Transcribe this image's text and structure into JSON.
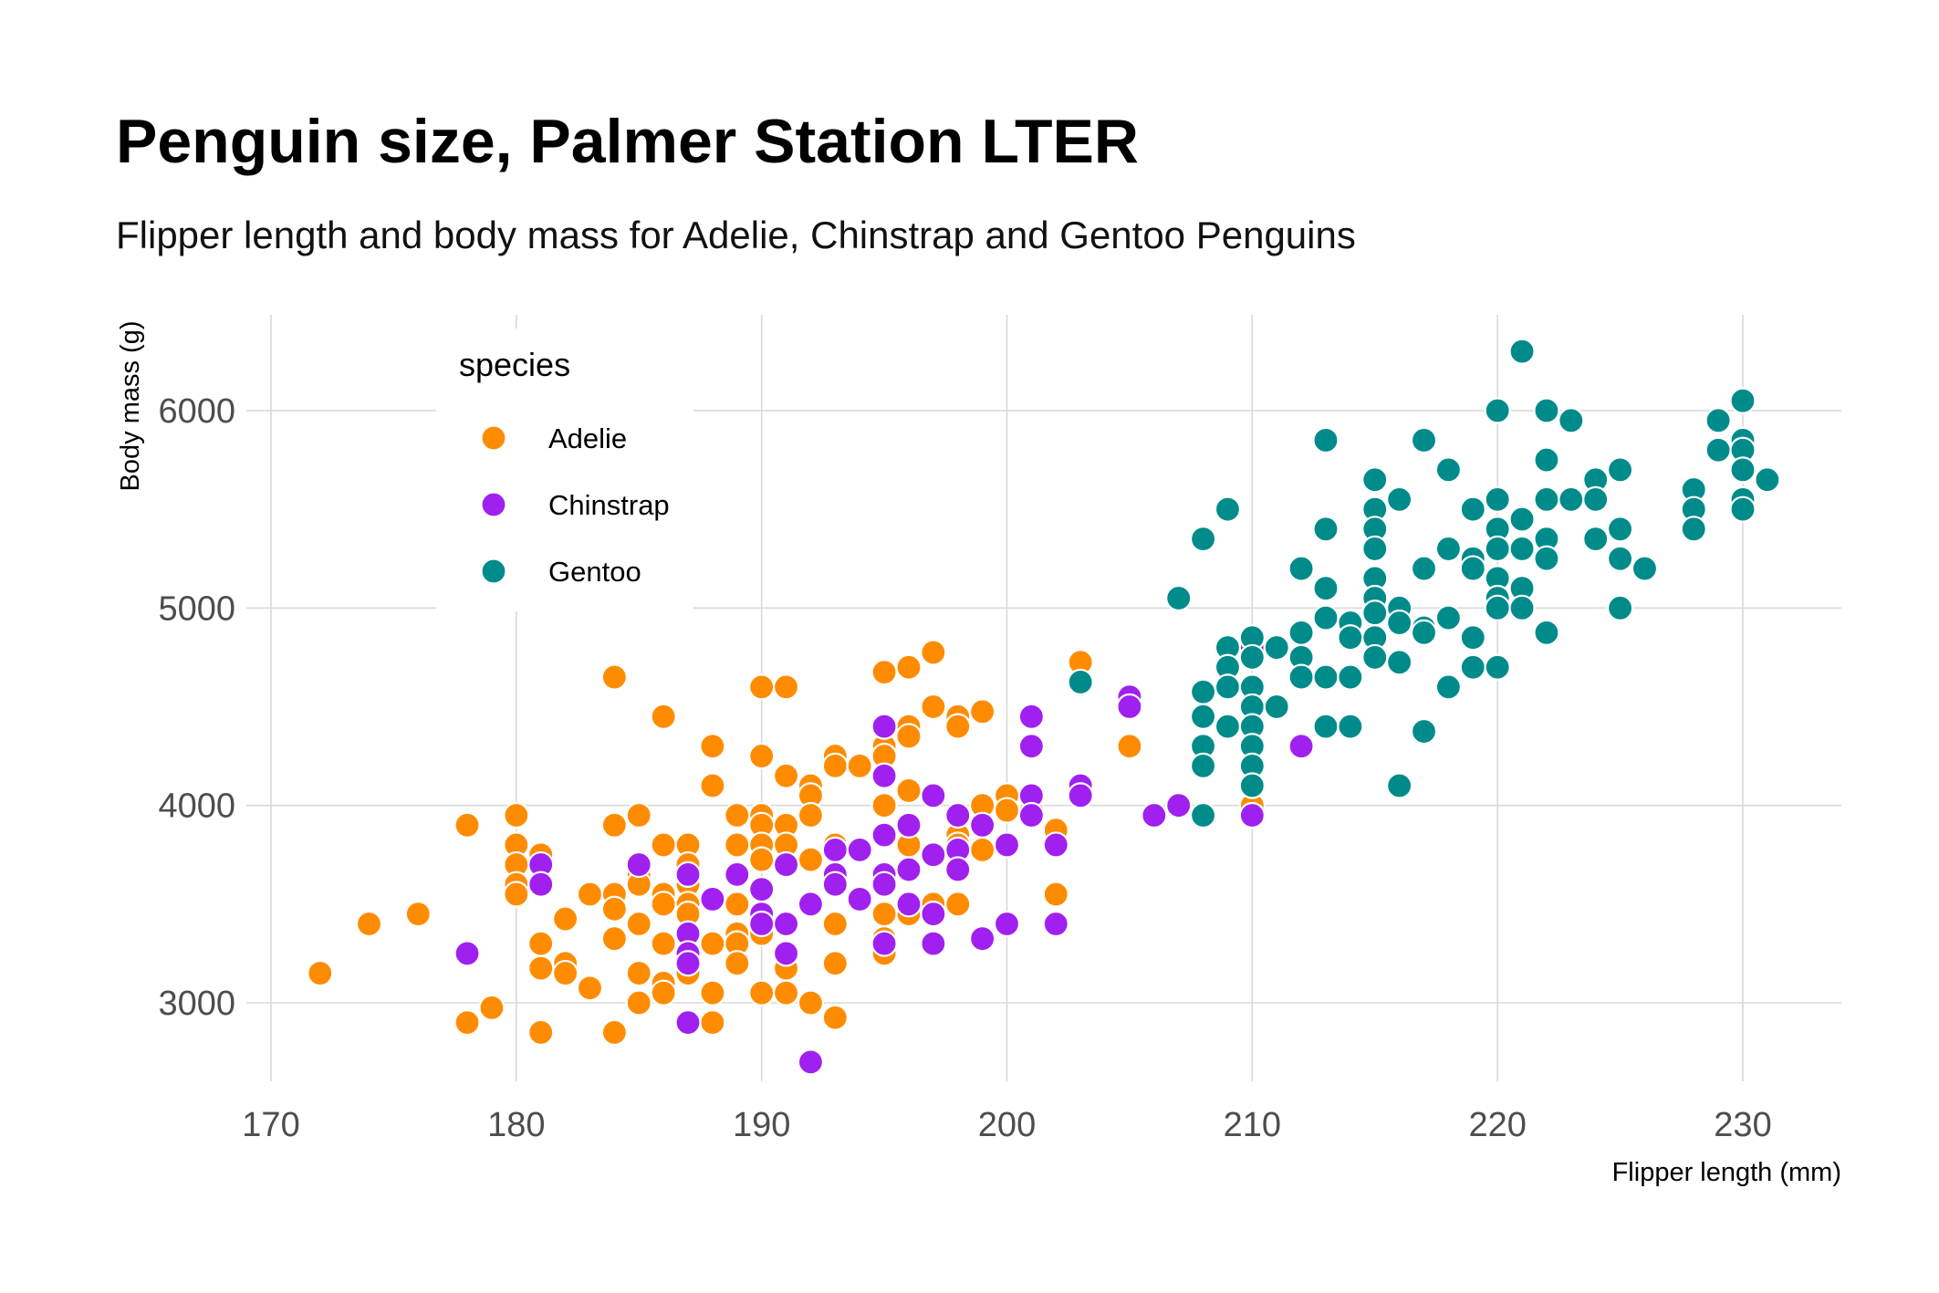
{
  "chart_data": {
    "type": "scatter",
    "title": "Penguin size, Palmer Station LTER",
    "subtitle": "Flipper length and body mass for Adelie, Chinstrap and Gentoo Penguins",
    "xlabel": "Flipper length (mm)",
    "ylabel": "Body mass (g)",
    "xlim": [
      170,
      234
    ],
    "ylim": [
      2600,
      6500
    ],
    "xticks": [
      170,
      180,
      190,
      200,
      210,
      220,
      230
    ],
    "yticks": [
      3000,
      4000,
      5000,
      6000
    ],
    "grid": true,
    "legend": {
      "title": "species",
      "placement": "top-left"
    },
    "series": [
      {
        "name": "Adelie",
        "color": "#FF8C00",
        "points": [
          [
            172,
            3150
          ],
          [
            174,
            3400
          ],
          [
            176,
            3450
          ],
          [
            178,
            3900
          ],
          [
            178,
            2900
          ],
          [
            179,
            2975
          ],
          [
            180,
            3950
          ],
          [
            180,
            3800
          ],
          [
            180,
            3700
          ],
          [
            180,
            3600
          ],
          [
            180,
            3550
          ],
          [
            181,
            3750
          ],
          [
            181,
            3300
          ],
          [
            181,
            3175
          ],
          [
            181,
            2850
          ],
          [
            182,
            3425
          ],
          [
            182,
            3200
          ],
          [
            182,
            3150
          ],
          [
            183,
            3550
          ],
          [
            183,
            3075
          ],
          [
            184,
            4650
          ],
          [
            184,
            3900
          ],
          [
            184,
            3550
          ],
          [
            184,
            3475
          ],
          [
            184,
            3325
          ],
          [
            184,
            2850
          ],
          [
            185,
            3950
          ],
          [
            185,
            3650
          ],
          [
            185,
            3600
          ],
          [
            185,
            3400
          ],
          [
            185,
            3150
          ],
          [
            185,
            3000
          ],
          [
            186,
            4450
          ],
          [
            186,
            3800
          ],
          [
            186,
            3550
          ],
          [
            186,
            3500
          ],
          [
            186,
            3300
          ],
          [
            186,
            3100
          ],
          [
            186,
            3050
          ],
          [
            187,
            3800
          ],
          [
            187,
            3700
          ],
          [
            187,
            3600
          ],
          [
            187,
            3500
          ],
          [
            187,
            3450
          ],
          [
            187,
            3150
          ],
          [
            188,
            4300
          ],
          [
            188,
            4100
          ],
          [
            188,
            3300
          ],
          [
            188,
            3050
          ],
          [
            188,
            2900
          ],
          [
            189,
            3950
          ],
          [
            189,
            3800
          ],
          [
            189,
            3500
          ],
          [
            189,
            3350
          ],
          [
            189,
            3300
          ],
          [
            189,
            3200
          ],
          [
            190,
            4600
          ],
          [
            190,
            4250
          ],
          [
            190,
            3950
          ],
          [
            190,
            3900
          ],
          [
            190,
            3800
          ],
          [
            190,
            3725
          ],
          [
            190,
            3450
          ],
          [
            190,
            3350
          ],
          [
            190,
            3050
          ],
          [
            191,
            4600
          ],
          [
            191,
            4150
          ],
          [
            191,
            3900
          ],
          [
            191,
            3800
          ],
          [
            191,
            3700
          ],
          [
            191,
            3400
          ],
          [
            191,
            3175
          ],
          [
            191,
            3050
          ],
          [
            192,
            4100
          ],
          [
            192,
            4050
          ],
          [
            192,
            3950
          ],
          [
            192,
            3725
          ],
          [
            192,
            3000
          ],
          [
            193,
            4250
          ],
          [
            193,
            4200
          ],
          [
            193,
            3800
          ],
          [
            193,
            3400
          ],
          [
            193,
            3200
          ],
          [
            193,
            2925
          ],
          [
            194,
            4200
          ],
          [
            194,
            3775
          ],
          [
            195,
            4675
          ],
          [
            195,
            4300
          ],
          [
            195,
            4250
          ],
          [
            195,
            4150
          ],
          [
            195,
            4000
          ],
          [
            195,
            3850
          ],
          [
            195,
            3650
          ],
          [
            195,
            3450
          ],
          [
            195,
            3325
          ],
          [
            195,
            3250
          ],
          [
            196,
            4700
          ],
          [
            196,
            4400
          ],
          [
            196,
            4350
          ],
          [
            196,
            4075
          ],
          [
            196,
            3800
          ],
          [
            196,
            3500
          ],
          [
            196,
            3450
          ],
          [
            197,
            4775
          ],
          [
            197,
            4500
          ],
          [
            197,
            3750
          ],
          [
            197,
            3500
          ],
          [
            198,
            4450
          ],
          [
            198,
            4400
          ],
          [
            198,
            3850
          ],
          [
            198,
            3800
          ],
          [
            198,
            3500
          ],
          [
            199,
            4475
          ],
          [
            199,
            4000
          ],
          [
            199,
            3775
          ],
          [
            200,
            4050
          ],
          [
            200,
            3975
          ],
          [
            201,
            3975
          ],
          [
            202,
            3875
          ],
          [
            202,
            3550
          ],
          [
            203,
            4725
          ],
          [
            205,
            4300
          ],
          [
            210,
            4000
          ]
        ]
      },
      {
        "name": "Chinstrap",
        "color": "#A020F0",
        "points": [
          [
            178,
            3250
          ],
          [
            181,
            3700
          ],
          [
            181,
            3600
          ],
          [
            185,
            3700
          ],
          [
            187,
            3650
          ],
          [
            187,
            3350
          ],
          [
            187,
            3250
          ],
          [
            187,
            3200
          ],
          [
            187,
            2900
          ],
          [
            188,
            3525
          ],
          [
            189,
            3650
          ],
          [
            190,
            3575
          ],
          [
            190,
            3450
          ],
          [
            190,
            3400
          ],
          [
            191,
            3700
          ],
          [
            191,
            3400
          ],
          [
            191,
            3250
          ],
          [
            192,
            3500
          ],
          [
            192,
            2700
          ],
          [
            193,
            3775
          ],
          [
            193,
            3650
          ],
          [
            193,
            3600
          ],
          [
            194,
            3775
          ],
          [
            194,
            3525
          ],
          [
            195,
            4400
          ],
          [
            195,
            4150
          ],
          [
            195,
            3850
          ],
          [
            195,
            3650
          ],
          [
            195,
            3600
          ],
          [
            195,
            3300
          ],
          [
            196,
            3900
          ],
          [
            196,
            3675
          ],
          [
            196,
            3500
          ],
          [
            197,
            4050
          ],
          [
            197,
            3750
          ],
          [
            197,
            3450
          ],
          [
            197,
            3300
          ],
          [
            198,
            3950
          ],
          [
            198,
            3775
          ],
          [
            198,
            3675
          ],
          [
            199,
            3900
          ],
          [
            199,
            3325
          ],
          [
            200,
            3800
          ],
          [
            200,
            3400
          ],
          [
            201,
            4450
          ],
          [
            201,
            4300
          ],
          [
            201,
            4050
          ],
          [
            201,
            3950
          ],
          [
            202,
            3800
          ],
          [
            202,
            3400
          ],
          [
            203,
            4100
          ],
          [
            203,
            4050
          ],
          [
            205,
            4550
          ],
          [
            205,
            4500
          ],
          [
            206,
            3950
          ],
          [
            207,
            4000
          ],
          [
            210,
            4800
          ],
          [
            210,
            4100
          ],
          [
            210,
            3950
          ],
          [
            212,
            4300
          ]
        ]
      },
      {
        "name": "Gentoo",
        "color": "#008B8B",
        "points": [
          [
            203,
            4625
          ],
          [
            207,
            5050
          ],
          [
            208,
            5350
          ],
          [
            208,
            4575
          ],
          [
            208,
            4450
          ],
          [
            208,
            4300
          ],
          [
            208,
            4200
          ],
          [
            208,
            3950
          ],
          [
            209,
            5500
          ],
          [
            209,
            4800
          ],
          [
            209,
            4700
          ],
          [
            209,
            4600
          ],
          [
            209,
            4400
          ],
          [
            210,
            4850
          ],
          [
            210,
            4750
          ],
          [
            210,
            4600
          ],
          [
            210,
            4500
          ],
          [
            210,
            4400
          ],
          [
            210,
            4300
          ],
          [
            210,
            4200
          ],
          [
            210,
            4100
          ],
          [
            211,
            4800
          ],
          [
            211,
            4500
          ],
          [
            212,
            5200
          ],
          [
            212,
            4875
          ],
          [
            212,
            4750
          ],
          [
            212,
            4650
          ],
          [
            213,
            5850
          ],
          [
            213,
            5400
          ],
          [
            213,
            5100
          ],
          [
            213,
            4950
          ],
          [
            213,
            4650
          ],
          [
            213,
            4400
          ],
          [
            214,
            4925
          ],
          [
            214,
            4850
          ],
          [
            214,
            4650
          ],
          [
            214,
            4400
          ],
          [
            215,
            5650
          ],
          [
            215,
            5500
          ],
          [
            215,
            5400
          ],
          [
            215,
            5300
          ],
          [
            215,
            5150
          ],
          [
            215,
            5050
          ],
          [
            215,
            4975
          ],
          [
            215,
            4850
          ],
          [
            215,
            4750
          ],
          [
            216,
            5550
          ],
          [
            216,
            5000
          ],
          [
            216,
            4925
          ],
          [
            216,
            4725
          ],
          [
            216,
            4100
          ],
          [
            217,
            5850
          ],
          [
            217,
            5200
          ],
          [
            217,
            4900
          ],
          [
            217,
            4875
          ],
          [
            217,
            4375
          ],
          [
            218,
            5700
          ],
          [
            218,
            5300
          ],
          [
            218,
            4950
          ],
          [
            218,
            4600
          ],
          [
            219,
            5500
          ],
          [
            219,
            5250
          ],
          [
            219,
            5200
          ],
          [
            219,
            4850
          ],
          [
            219,
            4700
          ],
          [
            220,
            6000
          ],
          [
            220,
            5550
          ],
          [
            220,
            5400
          ],
          [
            220,
            5300
          ],
          [
            220,
            5150
          ],
          [
            220,
            5050
          ],
          [
            220,
            5000
          ],
          [
            220,
            4700
          ],
          [
            221,
            6300
          ],
          [
            221,
            5450
          ],
          [
            221,
            5300
          ],
          [
            221,
            5100
          ],
          [
            221,
            5000
          ],
          [
            222,
            6000
          ],
          [
            222,
            5750
          ],
          [
            222,
            5550
          ],
          [
            222,
            5350
          ],
          [
            222,
            5250
          ],
          [
            222,
            4875
          ],
          [
            223,
            5950
          ],
          [
            223,
            5550
          ],
          [
            224,
            5650
          ],
          [
            224,
            5550
          ],
          [
            224,
            5350
          ],
          [
            225,
            5700
          ],
          [
            225,
            5400
          ],
          [
            225,
            5250
          ],
          [
            225,
            5000
          ],
          [
            226,
            5200
          ],
          [
            228,
            5600
          ],
          [
            228,
            5500
          ],
          [
            228,
            5400
          ],
          [
            229,
            5950
          ],
          [
            229,
            5800
          ],
          [
            230,
            6050
          ],
          [
            230,
            5850
          ],
          [
            230,
            5800
          ],
          [
            230,
            5700
          ],
          [
            230,
            5550
          ],
          [
            230,
            5500
          ],
          [
            231,
            5650
          ]
        ]
      }
    ]
  }
}
